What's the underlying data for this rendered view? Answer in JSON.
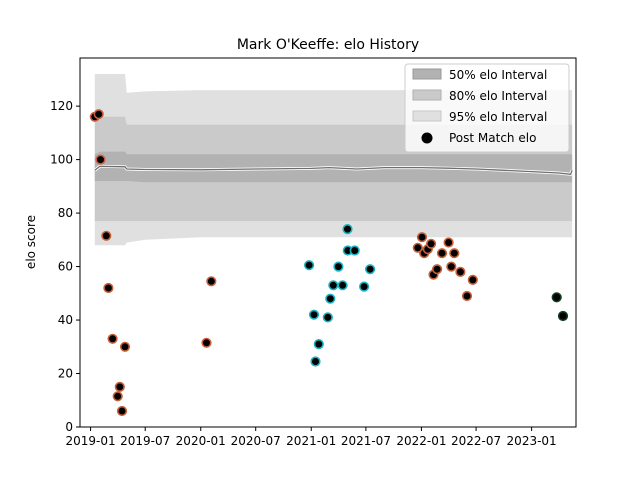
{
  "chart_data": {
    "type": "scatter",
    "title": "Mark O'Keeffe: elo History",
    "xlabel": "",
    "ylabel": "elo score",
    "xlim": [
      "2018-11-27",
      "2023-05-28"
    ],
    "ylim": [
      0,
      138
    ],
    "x_ticks": [
      "2019-01",
      "2019-07",
      "2020-01",
      "2020-07",
      "2021-01",
      "2021-07",
      "2022-01",
      "2022-07",
      "2023-01"
    ],
    "y_ticks": [
      0,
      20,
      40,
      60,
      80,
      100,
      120
    ],
    "legend": {
      "position": "top-right",
      "entries": [
        "50% elo Interval",
        "80% elo Interval",
        "95% elo Interval",
        "Post Match elo"
      ]
    },
    "bands": {
      "x": [
        "2019-01-15",
        "2019-02-01",
        "2019-04-25",
        "2019-05-01",
        "2019-07-01",
        "2020-01-01",
        "2020-07-01",
        "2021-01-01",
        "2021-03-01",
        "2021-06-01",
        "2021-09-01",
        "2022-01-01",
        "2022-04-01",
        "2022-07-01",
        "2022-10-01",
        "2023-01-01",
        "2023-04-01",
        "2023-05-10",
        "2023-05-15"
      ],
      "mean": [
        96,
        97.5,
        97.3,
        96.5,
        96.3,
        96.2,
        96.5,
        96.7,
        97,
        96.5,
        97,
        97,
        96.8,
        96.5,
        96,
        95.5,
        95,
        94.5,
        96
      ],
      "p50": [
        [
          92,
          102
        ],
        [
          92,
          103
        ],
        [
          92,
          103
        ],
        [
          92,
          102
        ],
        [
          91.5,
          102
        ],
        [
          91.5,
          102
        ],
        [
          91.5,
          102
        ],
        [
          91.5,
          102
        ],
        [
          91.5,
          102
        ],
        [
          91.5,
          102
        ],
        [
          91.5,
          102
        ],
        [
          91.5,
          102
        ],
        [
          91.5,
          102
        ],
        [
          91.5,
          102
        ],
        [
          91.5,
          102
        ],
        [
          91.5,
          102
        ],
        [
          91.5,
          102
        ],
        [
          91.5,
          102
        ],
        [
          91.5,
          102
        ]
      ],
      "p80": [
        [
          77,
          116
        ],
        [
          77,
          116
        ],
        [
          77,
          116
        ],
        [
          77,
          113
        ],
        [
          77,
          113
        ],
        [
          77,
          113
        ],
        [
          77,
          113
        ],
        [
          77,
          113
        ],
        [
          77,
          113
        ],
        [
          77,
          113
        ],
        [
          77,
          113
        ],
        [
          77,
          113
        ],
        [
          77,
          113
        ],
        [
          77,
          113
        ],
        [
          77,
          113
        ],
        [
          77,
          113
        ],
        [
          77,
          113
        ],
        [
          77,
          113
        ],
        [
          77,
          113
        ]
      ],
      "p95": [
        [
          68,
          132
        ],
        [
          68,
          132
        ],
        [
          68,
          132
        ],
        [
          69,
          125
        ],
        [
          70,
          125.5
        ],
        [
          71,
          126
        ],
        [
          71,
          126
        ],
        [
          71,
          126
        ],
        [
          71,
          126
        ],
        [
          71,
          126
        ],
        [
          71,
          126
        ],
        [
          71,
          126
        ],
        [
          71,
          126
        ],
        [
          71,
          126
        ],
        [
          71,
          126
        ],
        [
          71,
          126
        ],
        [
          71,
          126
        ],
        [
          71,
          126
        ],
        [
          71,
          126
        ]
      ]
    },
    "series": [
      {
        "color": "#c8603a",
        "points": [
          [
            "2019-01-15",
            116
          ],
          [
            "2019-01-28",
            117
          ],
          [
            "2019-02-03",
            100
          ],
          [
            "2019-02-22",
            71.5
          ],
          [
            "2019-03-01",
            52
          ],
          [
            "2019-03-15",
            33
          ],
          [
            "2019-04-01",
            11.5
          ],
          [
            "2019-04-08",
            15
          ],
          [
            "2019-04-15",
            6
          ],
          [
            "2019-04-25",
            30
          ],
          [
            "2020-01-20",
            31.5
          ],
          [
            "2020-02-05",
            54.5
          ],
          [
            "2021-12-20",
            67
          ],
          [
            "2022-01-03",
            71
          ],
          [
            "2022-01-10",
            65
          ],
          [
            "2022-01-22",
            66.5
          ],
          [
            "2022-02-02",
            68.5
          ],
          [
            "2022-02-10",
            57
          ],
          [
            "2022-02-22",
            59
          ],
          [
            "2022-03-10",
            65
          ],
          [
            "2022-04-01",
            69
          ],
          [
            "2022-04-10",
            60
          ],
          [
            "2022-04-20",
            65
          ],
          [
            "2022-05-10",
            58
          ],
          [
            "2022-06-01",
            49
          ],
          [
            "2022-06-20",
            55
          ]
        ]
      },
      {
        "color": "#1ab3c4",
        "points": [
          [
            "2020-12-25",
            60.5
          ],
          [
            "2021-01-10",
            42
          ],
          [
            "2021-01-15",
            24.5
          ],
          [
            "2021-01-26",
            31
          ],
          [
            "2021-02-25",
            41
          ],
          [
            "2021-03-05",
            48
          ],
          [
            "2021-03-15",
            53
          ],
          [
            "2021-04-01",
            60
          ],
          [
            "2021-04-15",
            53
          ],
          [
            "2021-05-01",
            74
          ],
          [
            "2021-05-02",
            66
          ],
          [
            "2021-05-25",
            66
          ],
          [
            "2021-06-25",
            52.5
          ],
          [
            "2021-07-15",
            59
          ]
        ]
      },
      {
        "color": "#0f3d1e",
        "points": [
          [
            "2023-03-25",
            48.5
          ],
          [
            "2023-04-15",
            41.5
          ]
        ]
      }
    ]
  }
}
